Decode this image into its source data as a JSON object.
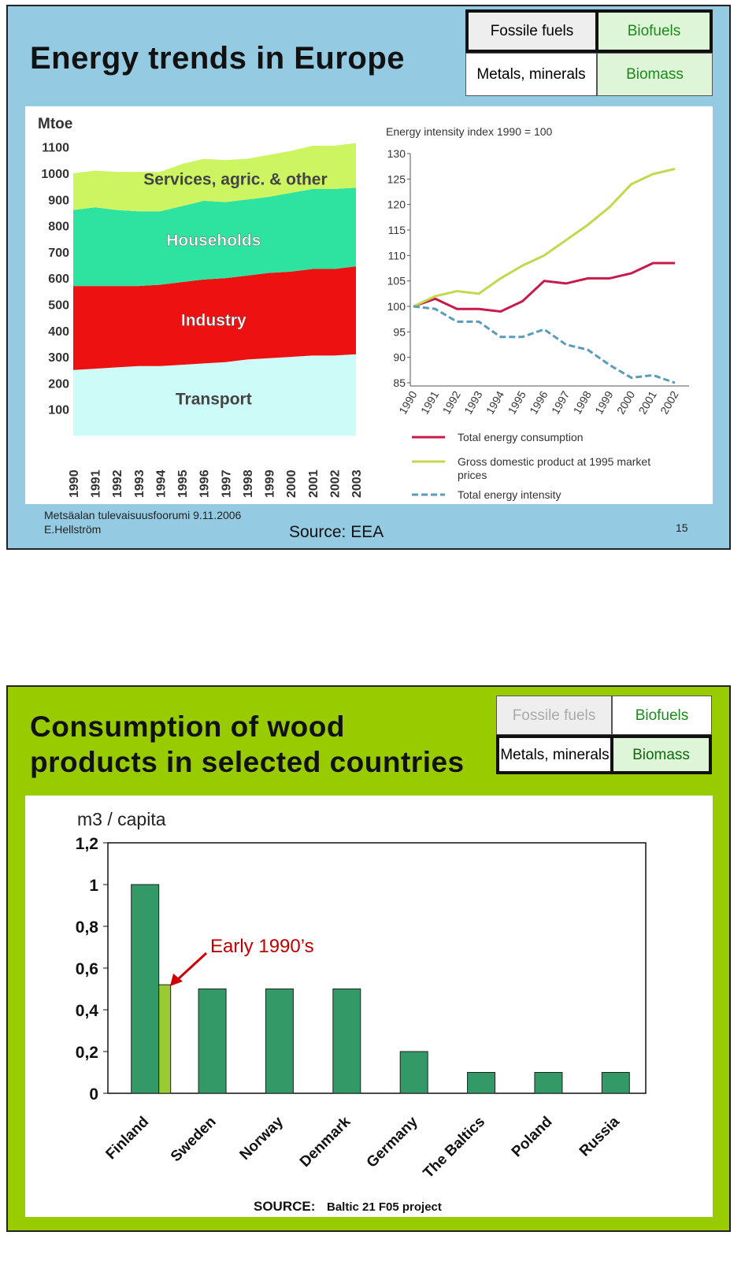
{
  "slides": [
    {
      "title": [
        "Energy trends in Europe"
      ],
      "legend_box": [
        "Fossile fuels",
        "Biofuels",
        "Metals, minerals",
        "Biomass"
      ],
      "footer": {
        "event": "Metsäalan tulevaisuusfoorumi 9.11.2006",
        "author": "E.Hellström",
        "source": "Source: EEA",
        "page": "15"
      }
    },
    {
      "title": [
        "Consumption of wood",
        "products in selected countries"
      ],
      "legend_box": [
        "Fossile fuels",
        "Biofuels",
        "Metals, minerals",
        "Biomass"
      ],
      "source_label": "SOURCE:",
      "source": "Baltic 21 F05 project"
    }
  ],
  "chart_data": [
    {
      "type": "stacked-area",
      "y_label": "Mtoe",
      "categories": [
        "1990",
        "1991",
        "1992",
        "1993",
        "1994",
        "1995",
        "1996",
        "1997",
        "1998",
        "1999",
        "2000",
        "2001",
        "2002",
        "2003"
      ],
      "series": [
        {
          "name": "Transport",
          "color": "#ccfbf8",
          "values": [
            250,
            255,
            260,
            265,
            265,
            270,
            275,
            280,
            290,
            295,
            300,
            305,
            305,
            310
          ]
        },
        {
          "name": "Industry",
          "color": "#ee1111",
          "values": [
            320,
            315,
            310,
            305,
            310,
            315,
            320,
            320,
            320,
            325,
            325,
            330,
            330,
            335
          ]
        },
        {
          "name": "Households",
          "color": "#2ee39f",
          "values": [
            290,
            300,
            290,
            285,
            280,
            290,
            300,
            290,
            290,
            290,
            300,
            305,
            305,
            300
          ]
        },
        {
          "name": "Services, agric. & other",
          "color": "#ccf561",
          "values": [
            140,
            140,
            145,
            150,
            150,
            160,
            160,
            160,
            155,
            160,
            160,
            165,
            165,
            170
          ]
        }
      ],
      "ylim": [
        0,
        1150
      ],
      "yticks": [
        100,
        200,
        300,
        400,
        500,
        600,
        700,
        800,
        900,
        1000,
        1100
      ]
    },
    {
      "type": "line",
      "title": "Energy intensity index 1990 = 100",
      "categories": [
        "1990",
        "1991",
        "1992",
        "1993",
        "1994",
        "1995",
        "1996",
        "1997",
        "1998",
        "1999",
        "2000",
        "2001",
        "2002"
      ],
      "series": [
        {
          "name": "Total energy consumption",
          "color": "#c8194b",
          "style": "solid",
          "values": [
            100,
            101.5,
            99.5,
            99.5,
            99,
            101,
            105,
            104.5,
            105.5,
            105.5,
            106.5,
            108.5,
            108.5
          ]
        },
        {
          "name": "Gross domestic product at 1995 market prices",
          "color": "#c5d74c",
          "style": "solid",
          "values": [
            100,
            102,
            103,
            102.5,
            105.5,
            108,
            110,
            113,
            116,
            119.5,
            124,
            126,
            127
          ]
        },
        {
          "name": "Total energy intensity",
          "color": "#5a9bbb",
          "style": "dashed",
          "values": [
            100,
            99.5,
            97,
            97,
            94,
            94,
            95.5,
            92.5,
            91.5,
            88.5,
            86,
            86.5,
            85
          ]
        }
      ],
      "ylim": [
        85,
        130
      ],
      "yticks": [
        85,
        90,
        95,
        100,
        105,
        110,
        115,
        120,
        125,
        130
      ]
    },
    {
      "type": "bar",
      "y_label": "m3 / capita",
      "categories": [
        "Finland",
        "Sweden",
        "Norway",
        "Denmark",
        "Germany",
        "The Baltics",
        "Poland",
        "Russia"
      ],
      "series": [
        {
          "color": "#339966",
          "values": [
            1,
            0.5,
            0.5,
            0.5,
            0.2,
            0.1,
            0.1,
            0.1
          ]
        },
        {
          "name": "Early 1990’s",
          "color": "#99cc33",
          "values": [
            0.52,
            null,
            null,
            null,
            null,
            null,
            null,
            null
          ]
        }
      ],
      "ylim": [
        0,
        1.2
      ],
      "yticks": [
        0,
        {
          "value": 0.2,
          "label": "0,2"
        },
        {
          "value": 0.4,
          "label": "0,4"
        },
        {
          "value": 0.6,
          "label": "0,6"
        },
        {
          "value": 0.8,
          "label": "0,8"
        },
        1,
        {
          "value": 1.2,
          "label": "1,2"
        }
      ]
    }
  ]
}
